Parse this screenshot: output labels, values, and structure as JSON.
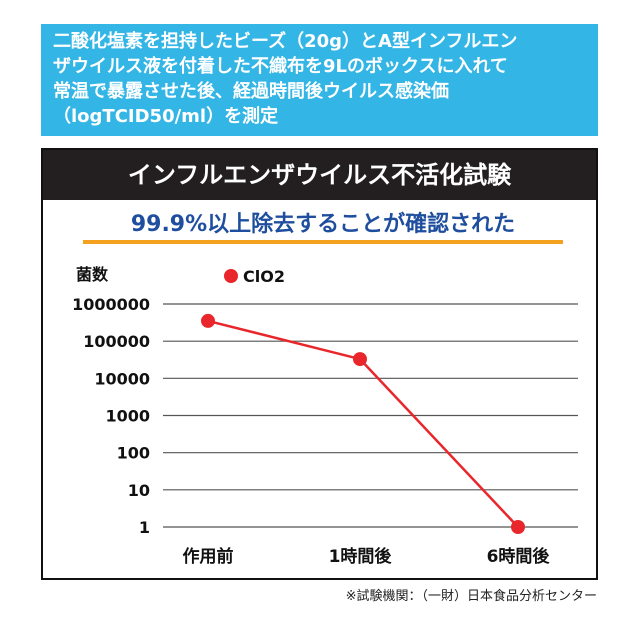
{
  "intro_lines": [
    "二酸化塩素を担持したビーズ（20g）とA型インフルエン",
    "ザウイルス液を付着した不織布を9Lのボックスに入れて",
    "常温で暴露させた後、経過時間後ウイルス感染価",
    "（logTCID50/ml）を測定"
  ],
  "panel_title": "インフルエンザウイルス不活化試験",
  "headline": "99.9%以上除去することが確認された",
  "source_note": "※試験機関：（一財）日本食品分析センター",
  "colors": {
    "intro_bg": "#33b5e5",
    "title_bg": "#231f20",
    "headline_text": "#1f4e9e",
    "headline_rule": "#f4a11d",
    "series": "#e8262c",
    "grid": "#555555"
  },
  "chart_data": {
    "type": "line",
    "ylabel": "菌数",
    "yscale": "log",
    "ylim": [
      1,
      1000000
    ],
    "y_ticks": [
      "1000000",
      "100000",
      "10000",
      "1000",
      "100",
      "10",
      "1"
    ],
    "categories": [
      "作用前",
      "1時間後",
      "6時間後"
    ],
    "series": [
      {
        "name": "ClO2",
        "values": [
          350000,
          33000,
          1
        ]
      }
    ],
    "legend_position": "top",
    "grid": true
  }
}
